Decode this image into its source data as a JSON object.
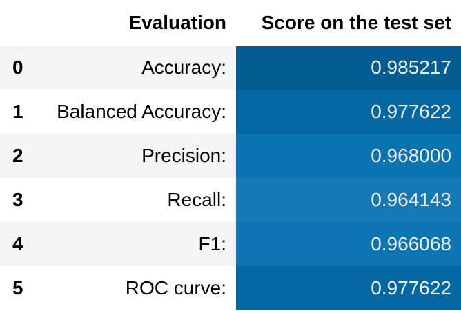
{
  "table": {
    "index_header": "",
    "columns": [
      "Evaluation",
      "Score on the test set"
    ],
    "rows": [
      {
        "index": "0",
        "evaluation": "Accuracy:",
        "score": "0.985217",
        "color": "#045d92"
      },
      {
        "index": "1",
        "evaluation": "Balanced Accuracy:",
        "score": "0.977622",
        "color": "#0567a2"
      },
      {
        "index": "2",
        "evaluation": "Precision:",
        "score": "0.968000",
        "color": "#0a73b2"
      },
      {
        "index": "3",
        "evaluation": "Recall:",
        "score": "0.964143",
        "color": "#1479b5"
      },
      {
        "index": "4",
        "evaluation": "F1:",
        "score": "0.966068",
        "color": "#0d75b3"
      },
      {
        "index": "5",
        "evaluation": "ROC curve:",
        "score": "0.977622",
        "color": "#0567a2"
      }
    ]
  }
}
